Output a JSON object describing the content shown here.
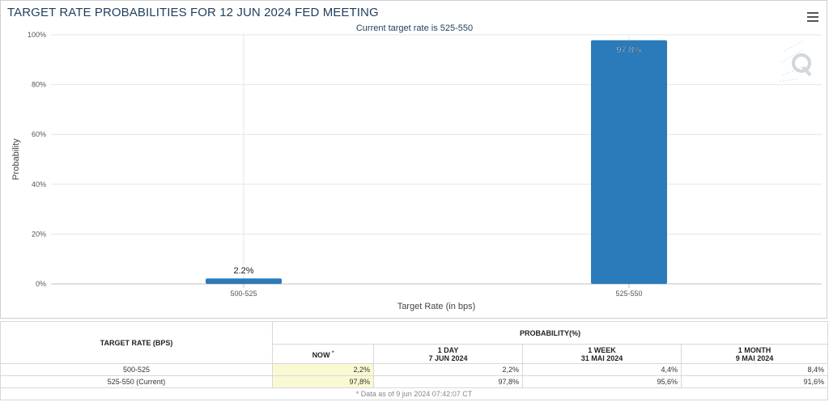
{
  "chart_header": {
    "title": "TARGET RATE PROBABILITIES FOR 12 JUN 2024 FED MEETING",
    "subtitle": "Current target rate is 525-550",
    "menu_icon": "hamburger-menu-icon",
    "watermark_icon": "q-logo-icon"
  },
  "chart_data": {
    "type": "bar",
    "categories": [
      "500-525",
      "525-550"
    ],
    "values": [
      2.2,
      97.8
    ],
    "data_labels": [
      "2.2%",
      "97.8%"
    ],
    "xlabel": "Target Rate (in bps)",
    "ylabel": "Probability",
    "ylim": [
      0,
      100
    ],
    "yticks": [
      "0%",
      "20%",
      "40%",
      "60%",
      "80%",
      "100%"
    ],
    "grid": true,
    "bar_color": "#2b7bba"
  },
  "table": {
    "col_target": "TARGET RATE (BPS)",
    "col_probability": "PROBABILITY(%)",
    "sub_now": "NOW",
    "sub_now_mark": "*",
    "sub_1day": "1 DAY",
    "sub_1day_date": "7 JUN 2024",
    "sub_1week": "1 WEEK",
    "sub_1week_date": "31 MAI 2024",
    "sub_1month": "1 MONTH",
    "sub_1month_date": "9 MAI 2024",
    "rows": [
      {
        "rate": "500-525",
        "now": "2,2%",
        "day": "2,2%",
        "week": "4,4%",
        "month": "8,4%"
      },
      {
        "rate": "525-550 (Current)",
        "now": "97,8%",
        "day": "97,8%",
        "week": "95,6%",
        "month": "91,6%"
      }
    ],
    "footnote": "* Data as of 9 jun 2024 07:42:07 CT",
    "highlight_color": "#fafad2"
  }
}
